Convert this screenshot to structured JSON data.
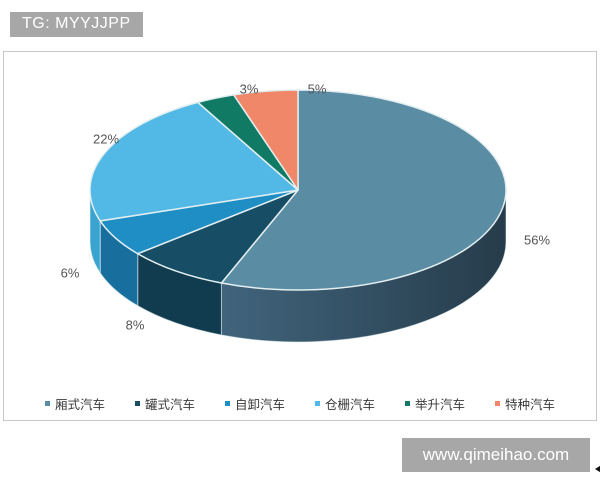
{
  "stamp": {
    "text": "TG: MYYJJPP"
  },
  "watermark": {
    "text": "www.qimeihao.com"
  },
  "colors": {
    "banner_bg": "#a7a7a7",
    "banner_text": "#ffffff",
    "chart_border": "#c6c6c6",
    "slice_stroke": "#e3eef0",
    "label_text": "#545454",
    "legend_text": "#3a3a3a",
    "background": "#ffffff"
  },
  "chart_data": {
    "type": "pie",
    "style": "3d",
    "title": "",
    "start_angle_deg": 0,
    "direction": "clockwise",
    "legend_position": "bottom",
    "unit": "%",
    "categories": [
      "厢式汽车",
      "罐式汽车",
      "自卸汽车",
      "仓栅汽车",
      "举升汽车",
      "特种汽车"
    ],
    "values": [
      56,
      8,
      6,
      22,
      3,
      5
    ],
    "labels": [
      "56%",
      "8%",
      "6%",
      "22%",
      "3%",
      "5%"
    ],
    "slice_colors_top": [
      "#5a8ca4",
      "#174e66",
      "#1e8ec4",
      "#52b9e6",
      "#107a64",
      "#ef8768"
    ],
    "slice_colors_side": [
      "#3e617a",
      "#113c50",
      "#186f9e",
      "#3ba3cf",
      "#0b5f4f",
      "#c96b50"
    ],
    "big_slice_side_gradient": [
      "#41647c",
      "#263c4b"
    ]
  }
}
